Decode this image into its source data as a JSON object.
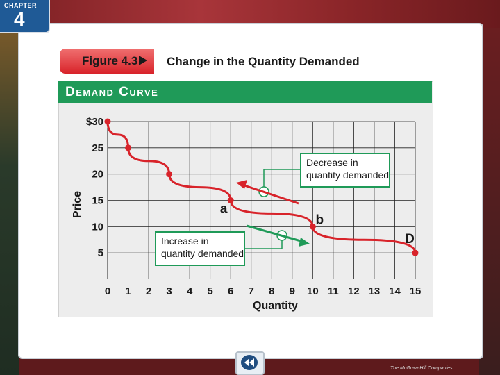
{
  "chapter": {
    "label": "CHAPTER",
    "number": "4"
  },
  "figure": {
    "label": "Figure 4.3",
    "title": "Change in the Quantity Demanded"
  },
  "publisher": "The McGraw-Hill Companies",
  "chart_data": {
    "type": "line",
    "title": "Demand Curve",
    "xlabel": "Quantity",
    "ylabel": "Price",
    "xlim": [
      0,
      15
    ],
    "ylim": [
      0,
      30
    ],
    "x_ticks": [
      "0",
      "1",
      "2",
      "3",
      "4",
      "5",
      "6",
      "7",
      "8",
      "9",
      "10",
      "11",
      "12",
      "13",
      "14",
      "15"
    ],
    "y_ticks": [
      {
        "value": 5,
        "label": "5"
      },
      {
        "value": 10,
        "label": "10"
      },
      {
        "value": 15,
        "label": "15"
      },
      {
        "value": 20,
        "label": "20"
      },
      {
        "value": 25,
        "label": "25"
      },
      {
        "value": 30,
        "label": "$30"
      }
    ],
    "grid": true,
    "series": [
      {
        "name": "D",
        "color": "#d8232a",
        "points": [
          {
            "x": 0,
            "y": 30
          },
          {
            "x": 1,
            "y": 25
          },
          {
            "x": 3,
            "y": 20
          },
          {
            "x": 6,
            "y": 15
          },
          {
            "x": 10,
            "y": 10
          },
          {
            "x": 15,
            "y": 5
          }
        ]
      }
    ],
    "point_labels": [
      {
        "text": "a",
        "x": 6,
        "y": 15
      },
      {
        "text": "b",
        "x": 10,
        "y": 10
      }
    ],
    "annotations": [
      {
        "text": [
          "Decrease in",
          "quantity demanded"
        ],
        "arrow_color": "#d8232a",
        "connector_color": "#1f9a58"
      },
      {
        "text": [
          "Increase in",
          "quantity demanded"
        ],
        "arrow_color": "#1f9a58",
        "connector_color": "#1f9a58"
      }
    ]
  }
}
